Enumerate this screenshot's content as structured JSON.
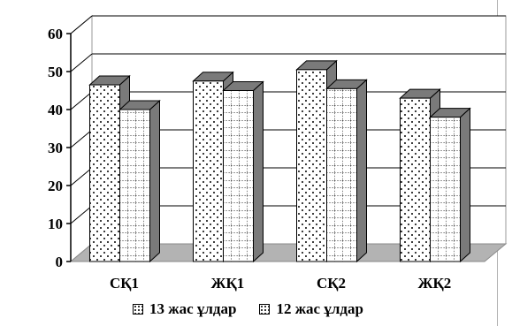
{
  "chart_data": {
    "type": "bar",
    "categories": [
      "СҚ1",
      "ЖҚ1",
      "СҚ2",
      "ЖҚ2"
    ],
    "series": [
      {
        "name": "13 жас ұлдар",
        "values": [
          46.5,
          47.5,
          50.5,
          43
        ]
      },
      {
        "name": "12 жас ұлдар",
        "values": [
          40,
          45,
          45.5,
          38
        ]
      }
    ],
    "yticks": [
      "0",
      "10",
      "20",
      "30",
      "40",
      "50",
      "60"
    ],
    "ylim": [
      0,
      60
    ],
    "grid": true,
    "legend": "bottom",
    "colors": {
      "bar_front": "#ffffff",
      "bar_side": "#7a7a7a",
      "bar_top": "#7a7a7a",
      "floor": "#b3b3b3",
      "grid": "#000000"
    }
  }
}
